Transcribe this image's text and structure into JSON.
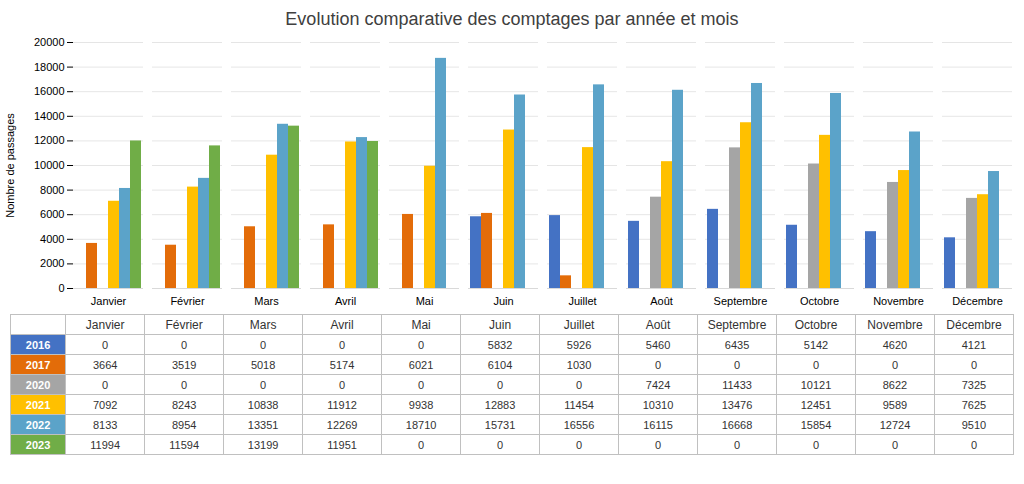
{
  "chart_data": {
    "type": "bar",
    "title": "Evolution comparative des comptages par année et mois",
    "ylabel": "Nombre de passages",
    "categories": [
      "Janvier",
      "Février",
      "Mars",
      "Avril",
      "Mai",
      "Juin",
      "Juillet",
      "Août",
      "Septembre",
      "Octobre",
      "Novembre",
      "Décembre"
    ],
    "series": [
      {
        "name": "2016",
        "color": "#4472C4",
        "values": [
          0,
          0,
          0,
          0,
          0,
          5832,
          5926,
          5460,
          6435,
          5142,
          4620,
          4121
        ]
      },
      {
        "name": "2017",
        "color": "#E36C09",
        "values": [
          3664,
          3519,
          5018,
          5174,
          6021,
          6104,
          1030,
          0,
          0,
          0,
          0,
          0
        ]
      },
      {
        "name": "2020",
        "color": "#A5A5A5",
        "values": [
          0,
          0,
          0,
          0,
          0,
          0,
          0,
          7424,
          11433,
          10121,
          8622,
          7325
        ]
      },
      {
        "name": "2021",
        "color": "#FFC000",
        "values": [
          7092,
          8243,
          10838,
          11912,
          9938,
          12883,
          11454,
          10310,
          13476,
          12451,
          9589,
          7625
        ]
      },
      {
        "name": "2022",
        "color": "#5BA3C9",
        "values": [
          8133,
          8954,
          13351,
          12269,
          18710,
          15731,
          16556,
          16115,
          16668,
          15854,
          12724,
          9510
        ]
      },
      {
        "name": "2023",
        "color": "#70AD47",
        "values": [
          11994,
          11594,
          13199,
          11951,
          0,
          0,
          0,
          0,
          0,
          0,
          0,
          0
        ]
      }
    ],
    "ylim": [
      0,
      20000
    ],
    "yticks": [
      0,
      2000,
      4000,
      6000,
      8000,
      10000,
      12000,
      14000,
      16000,
      18000,
      20000
    ],
    "grid": true
  }
}
